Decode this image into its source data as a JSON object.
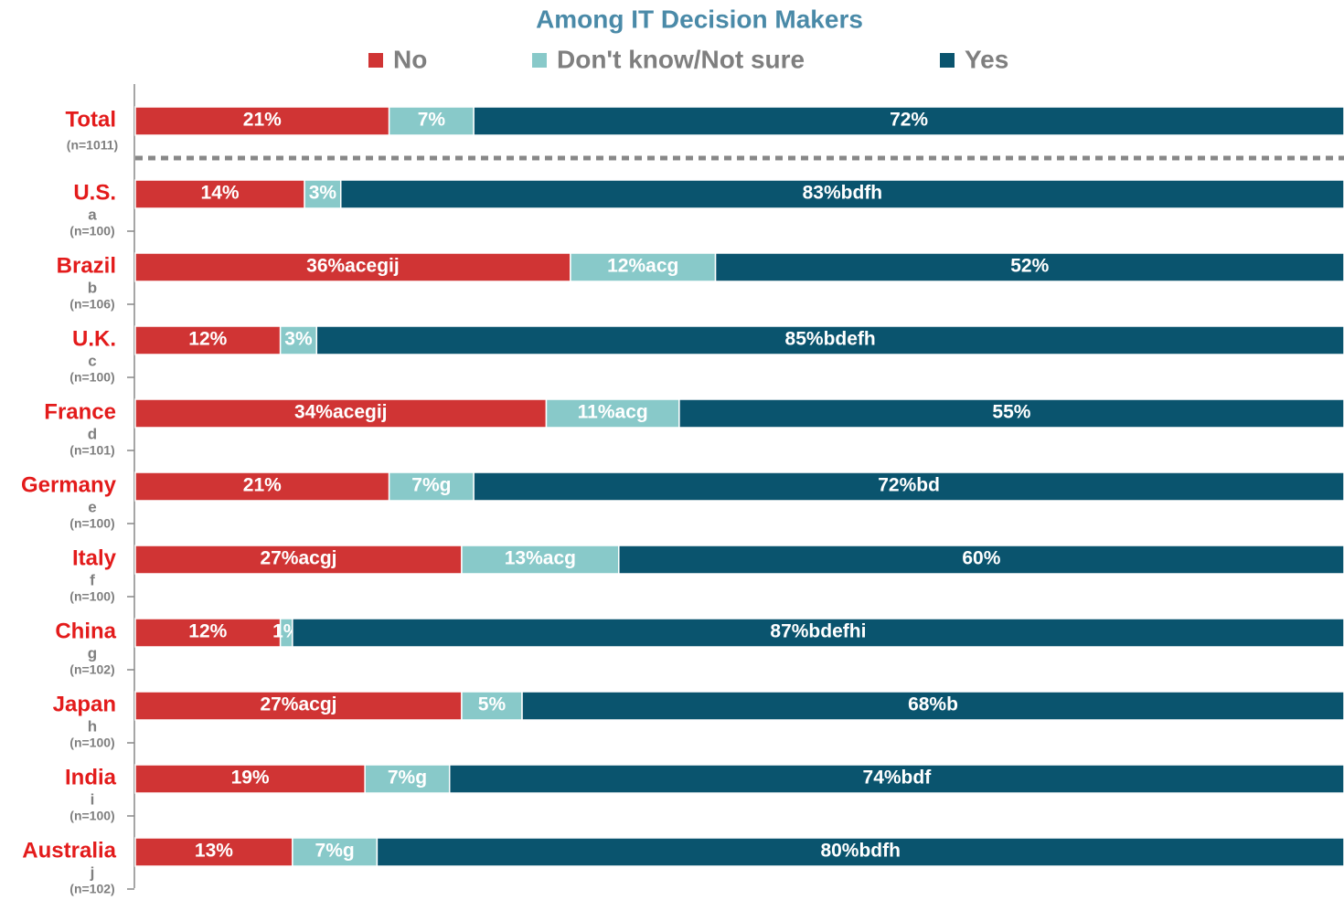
{
  "chart_data": {
    "type": "stacked_bar_horizontal",
    "title": "Among IT Decision Makers",
    "categories": [
      "Total",
      "U.S.",
      "Brazil",
      "U.K.",
      "France",
      "Germany",
      "Italy",
      "China",
      "Japan",
      "India",
      "Australia"
    ],
    "category_letters": [
      null,
      "a",
      "b",
      "c",
      "d",
      "e",
      "f",
      "g",
      "h",
      "i",
      "j"
    ],
    "category_bases": [
      "(n=1011)",
      "(n=100)",
      "(n=106)",
      "(n=100)",
      "(n=101)",
      "(n=100)",
      "(n=100)",
      "(n=102)",
      "(n=100)",
      "(n=100)",
      "(n=102)"
    ],
    "xlim": [
      0,
      100
    ],
    "series": [
      {
        "name": "No",
        "color": "#d03434",
        "values": [
          21,
          14,
          36,
          12,
          34,
          21,
          27,
          12,
          27,
          19,
          13
        ],
        "value_labels": [
          "21%",
          "14%",
          "36%acegij",
          "12%",
          "34%acegij",
          "21%",
          "27%acgj",
          "12%",
          "27%acgj",
          "19%",
          "13%"
        ]
      },
      {
        "name": "Don't know/Not sure",
        "color": "#88c9c9",
        "values": [
          7,
          3,
          12,
          3,
          11,
          7,
          13,
          1,
          5,
          7,
          7
        ],
        "value_labels": [
          "7%",
          "3%",
          "12%acg",
          "3%",
          "11%acg",
          "7%g",
          "13%acg",
          "1%",
          "5%",
          "7%g",
          "7%g"
        ]
      },
      {
        "name": "Yes",
        "color": "#0a546e",
        "values": [
          72,
          83,
          52,
          85,
          55,
          72,
          60,
          87,
          68,
          74,
          80
        ],
        "value_labels": [
          "72%",
          "83%bdfh",
          "52%",
          "85%bdefh",
          "55%",
          "72%bd",
          "60%",
          "87%bdefhi",
          "68%b",
          "74%bdf",
          "80%bdfh"
        ]
      }
    ]
  }
}
